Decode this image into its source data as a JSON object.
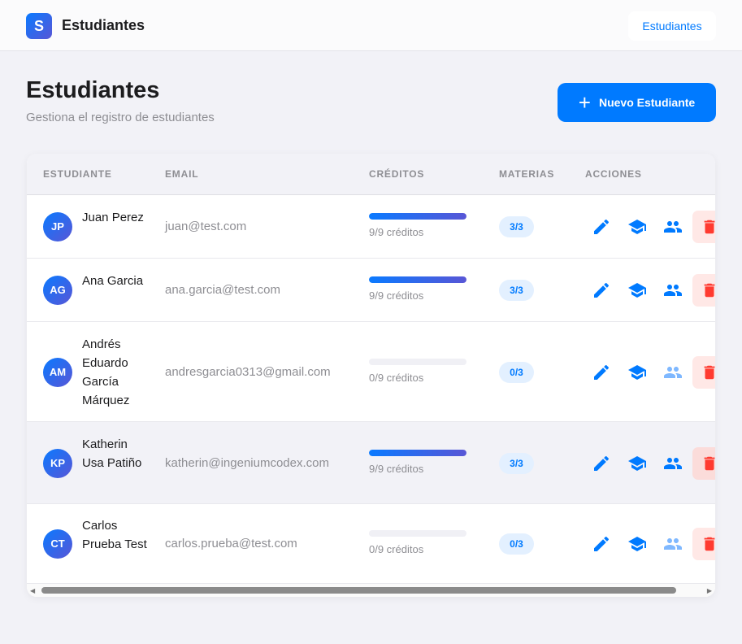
{
  "header": {
    "logo_letter": "S",
    "app_title": "Estudiantes",
    "nav_button": "Estudiantes"
  },
  "page": {
    "title": "Estudiantes",
    "subtitle": "Gestiona el registro de estudiantes",
    "new_button": "Nuevo Estudiante",
    "new_icon": "plus-icon"
  },
  "table": {
    "columns": [
      "ESTUDIANTE",
      "EMAIL",
      "CRÉDITOS",
      "MATERIAS",
      "ACCIONES"
    ],
    "rows": [
      {
        "initials": "JP",
        "name": "Juan Perez",
        "email": "juan@test.com",
        "credits_progress": 1,
        "credits_text": "9/9 créditos",
        "subjects": "3/3",
        "groups_active": true
      },
      {
        "initials": "AG",
        "name": "Ana Garcia",
        "email": "ana.garcia@test.com",
        "credits_progress": 1,
        "credits_text": "9/9 créditos",
        "subjects": "3/3",
        "groups_active": true
      },
      {
        "initials": "AM",
        "name": "Andrés Eduardo García Márquez",
        "email": "andresgarcia0313@gmail.com",
        "credits_progress": 0,
        "credits_text": "0/9 créditos",
        "subjects": "0/3",
        "groups_active": false
      },
      {
        "initials": "KP",
        "name": "Katherin Usa Patiño",
        "email": "katherin@ingeniumcodex.com",
        "credits_progress": 1,
        "credits_text": "9/9 créditos",
        "subjects": "3/3",
        "groups_active": true
      },
      {
        "initials": "CT",
        "name": "Carlos Prueba Test",
        "email": "carlos.prueba@test.com",
        "credits_progress": 0,
        "credits_text": "0/9 créditos",
        "subjects": "0/3",
        "groups_active": false
      }
    ]
  },
  "colors": {
    "accent": "#007aff",
    "danger": "#ff3b30",
    "danger_bg": "#ffe8e6",
    "badge_bg": "#e3f0ff",
    "inactive_icon": "#7fb8ff"
  }
}
